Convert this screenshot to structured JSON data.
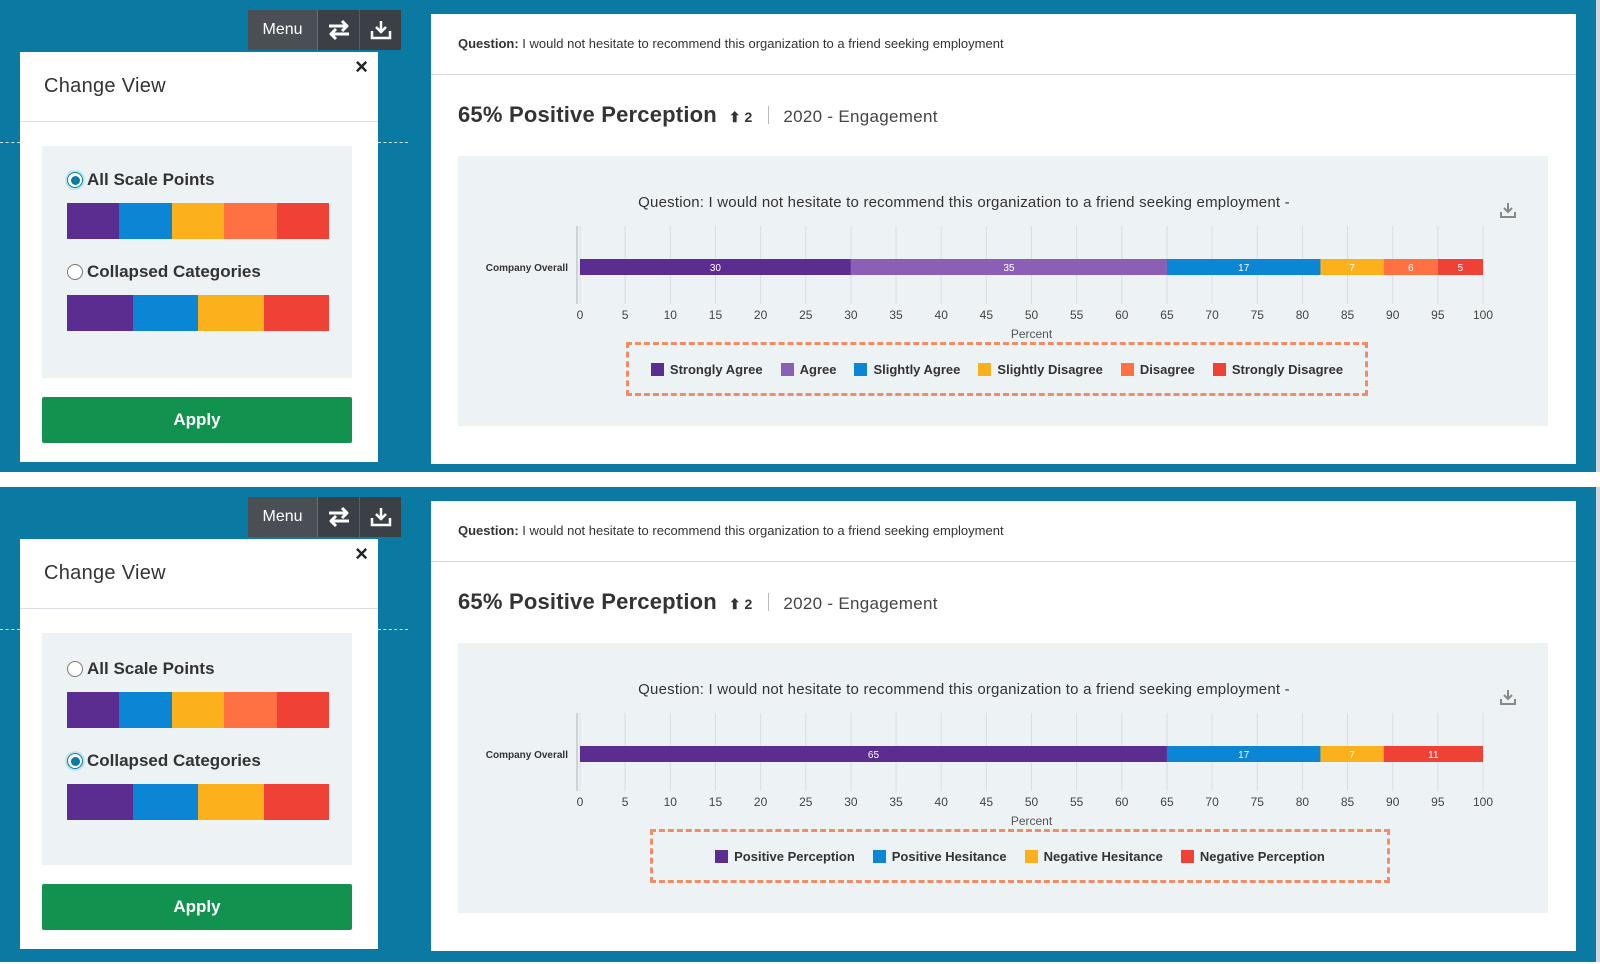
{
  "colors": {
    "background": "#0b7aa3",
    "strongly_agree": "#5c2d91",
    "agree": "#8b5fb5",
    "slightly_agree": "#0a86d4",
    "slightly_disagree": "#fbb11c",
    "disagree": "#ff7043",
    "strongly_disagree": "#ef4136",
    "apply": "#11934f"
  },
  "toolbar": {
    "menu_label": "Menu",
    "swap_icon": "swap-arrows-icon",
    "download_icon": "download-tray-icon"
  },
  "change_view": {
    "title": "Change View",
    "close_label": "×",
    "option_all": "All Scale Points",
    "option_collapsed": "Collapsed Categories",
    "apply_label": "Apply"
  },
  "question": {
    "prefix": "Question:",
    "text": "I would not hesitate to recommend this organization to a friend seeking employment"
  },
  "headline": {
    "positive": "65% Positive Perception",
    "trend": "2",
    "survey": "2020 - Engagement"
  },
  "chart_title": "Question: I would not hesitate to recommend this organization to a friend seeking employment -",
  "panels": [
    {
      "selected": "all",
      "chart_data": {
        "type": "bar",
        "orientation": "horizontal",
        "stacked": true,
        "title": "Question: I would not hesitate to recommend this organization to a friend seeking employment -",
        "categories": [
          "Company Overall"
        ],
        "xlabel": "Percent",
        "xlim": [
          0,
          100
        ],
        "xticks": [
          0,
          5,
          10,
          15,
          20,
          25,
          30,
          35,
          40,
          45,
          50,
          55,
          60,
          65,
          70,
          75,
          80,
          85,
          90,
          95,
          100
        ],
        "series": [
          {
            "name": "Strongly Agree",
            "values": [
              30
            ],
            "color": "#5c2d91"
          },
          {
            "name": "Agree",
            "values": [
              35
            ],
            "color": "#8b5fb5"
          },
          {
            "name": "Slightly Agree",
            "values": [
              17
            ],
            "color": "#0a86d4"
          },
          {
            "name": "Slightly Disagree",
            "values": [
              7
            ],
            "color": "#fbb11c"
          },
          {
            "name": "Disagree",
            "values": [
              6
            ],
            "color": "#ff7043"
          },
          {
            "name": "Strongly Disagree",
            "values": [
              5
            ],
            "color": "#ef4136"
          }
        ],
        "legend_position": "bottom"
      }
    },
    {
      "selected": "collapsed",
      "chart_data": {
        "type": "bar",
        "orientation": "horizontal",
        "stacked": true,
        "title": "Question: I would not hesitate to recommend this organization to a friend seeking employment -",
        "categories": [
          "Company Overall"
        ],
        "xlabel": "Percent",
        "xlim": [
          0,
          100
        ],
        "xticks": [
          0,
          5,
          10,
          15,
          20,
          25,
          30,
          35,
          40,
          45,
          50,
          55,
          60,
          65,
          70,
          75,
          80,
          85,
          90,
          95,
          100
        ],
        "series": [
          {
            "name": "Positive Perception",
            "values": [
              65
            ],
            "color": "#5c2d91"
          },
          {
            "name": "Positive Hesitance",
            "values": [
              17
            ],
            "color": "#0a86d4"
          },
          {
            "name": "Negative Hesitance",
            "values": [
              7
            ],
            "color": "#fbb11c"
          },
          {
            "name": "Negative Perception",
            "values": [
              11
            ],
            "color": "#ef4136"
          }
        ],
        "legend_position": "bottom"
      }
    }
  ]
}
